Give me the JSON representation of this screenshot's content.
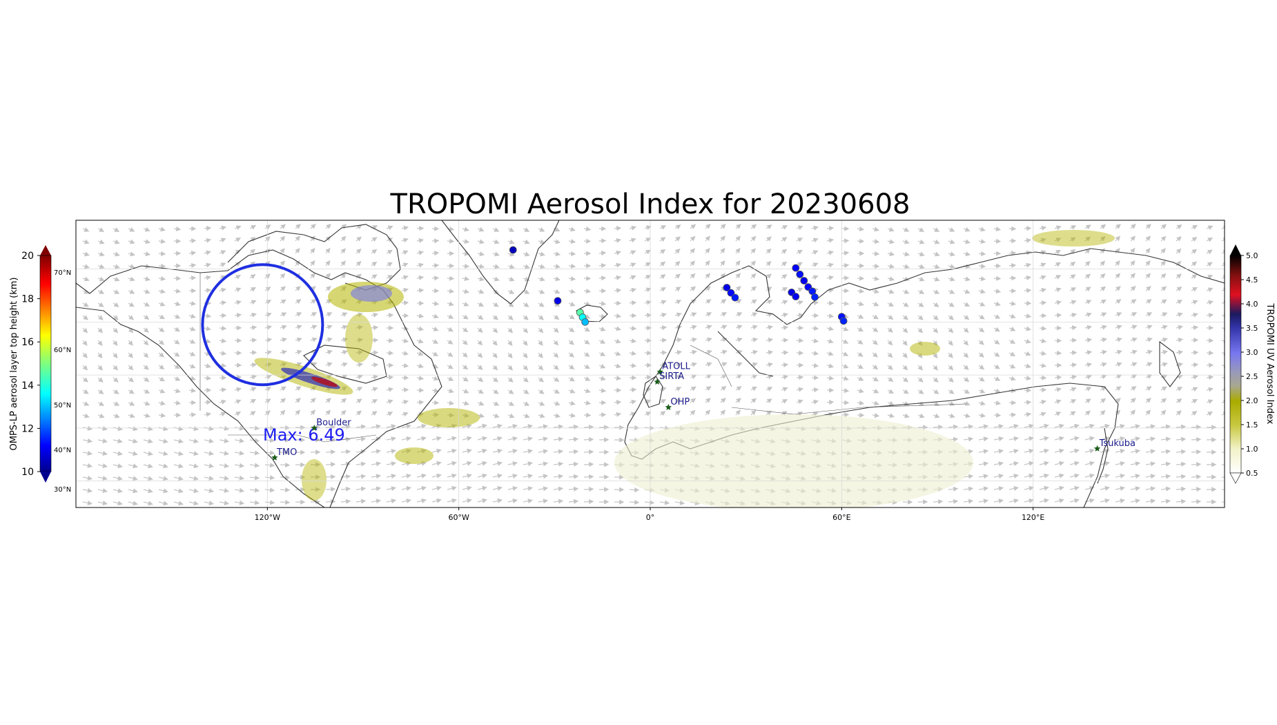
{
  "title": "TROPOMI Aerosol Index for 20230608",
  "max_label": "Max: 6.49",
  "longitude_ticks": [
    "120°W",
    "60°W",
    "0°",
    "60°E",
    "120°E"
  ],
  "latitude_ticks": [
    "70°N",
    "60°N",
    "50°N",
    "40°N",
    "30°N"
  ],
  "left_colorbar": {
    "label": "OMPS-LP aerosol layer top height (km)",
    "ticks": [
      "20",
      "18",
      "16",
      "14",
      "12",
      "10"
    ],
    "range": [
      10,
      20
    ],
    "colormap": "jet"
  },
  "right_colorbar": {
    "label": "TROPOMI UV Aerosol Index",
    "ticks": [
      "5.0",
      "4.5",
      "4.0",
      "3.5",
      "3.0",
      "2.5",
      "2.0",
      "1.5",
      "1.0",
      "0.5"
    ],
    "range": [
      0.5,
      5.0
    ]
  },
  "stations": [
    {
      "name": "ATOLL",
      "lon": 3.1,
      "lat": 50.6
    },
    {
      "name": "SIRTA",
      "lon": 2.2,
      "lat": 48.7
    },
    {
      "name": "OHP",
      "lon": 5.7,
      "lat": 43.9
    },
    {
      "name": "Boulder",
      "lon": -105.3,
      "lat": 40.0
    },
    {
      "name": "TMO",
      "lon": -117.7,
      "lat": 34.4
    },
    {
      "name": "Tsukuba",
      "lon": 140.1,
      "lat": 36.1
    }
  ],
  "omps_points": [
    {
      "lon": -43.0,
      "lat": 73.6,
      "height_km": 10.6
    },
    {
      "lon": -29.0,
      "lat": 64.0,
      "height_km": 11.0
    },
    {
      "lon": -22.0,
      "lat": 61.8,
      "height_km": 14.6
    },
    {
      "lon": -21.2,
      "lat": 60.9,
      "height_km": 13.8
    },
    {
      "lon": -20.4,
      "lat": 60.0,
      "height_km": 13.1
    },
    {
      "lon": 24.0,
      "lat": 66.5,
      "height_km": 11.0
    },
    {
      "lon": 25.3,
      "lat": 65.5,
      "height_km": 11.3
    },
    {
      "lon": 26.6,
      "lat": 64.6,
      "height_km": 11.5
    },
    {
      "lon": 45.6,
      "lat": 70.2,
      "height_km": 11.2
    },
    {
      "lon": 46.9,
      "lat": 69.0,
      "height_km": 11.4
    },
    {
      "lon": 48.2,
      "lat": 67.8,
      "height_km": 11.1
    },
    {
      "lon": 49.5,
      "lat": 66.6,
      "height_km": 11.3
    },
    {
      "lon": 50.8,
      "lat": 65.8,
      "height_km": 11.5
    },
    {
      "lon": 51.6,
      "lat": 64.7,
      "height_km": 11.6
    },
    {
      "lon": 44.3,
      "lat": 65.6,
      "height_km": 11.0
    },
    {
      "lon": 45.6,
      "lat": 64.8,
      "height_km": 11.1
    },
    {
      "lon": 60.0,
      "lat": 61.0,
      "height_km": 11.4
    },
    {
      "lon": 60.6,
      "lat": 60.2,
      "height_km": 11.6
    }
  ],
  "max_marker": {
    "lon": -121.5,
    "lat": 59.5
  },
  "colors": {
    "circle": "#1f2fe0",
    "max_text": "#1c1cf0",
    "station_star": "#1a5c1a",
    "station_text": "#1a1a8c",
    "coastline": "#333333",
    "wind_arrow": "#c0c0c0"
  }
}
